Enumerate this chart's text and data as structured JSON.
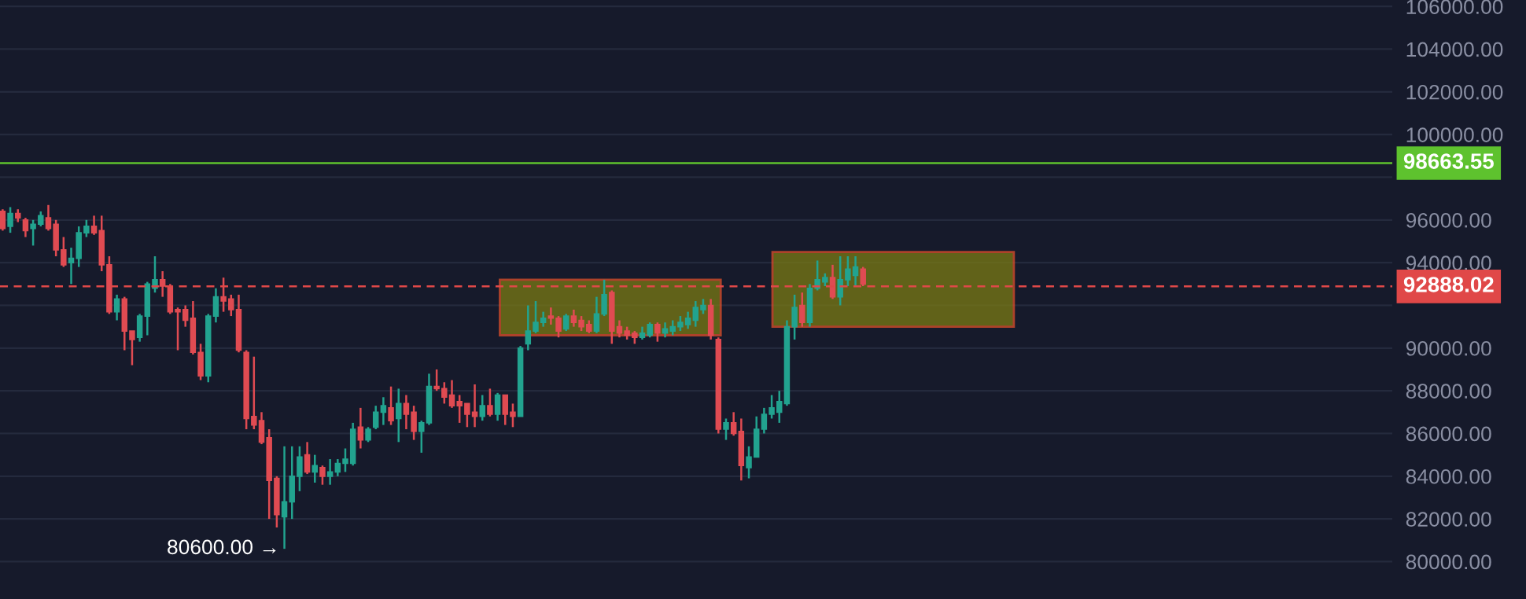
{
  "chart_data": {
    "type": "candlestick",
    "categories": [
      null,
      null,
      null,
      null,
      null,
      null,
      null,
      null,
      null,
      null,
      null,
      null,
      null,
      null,
      null,
      null,
      null,
      null,
      null,
      null,
      null,
      null,
      null,
      null,
      null,
      null,
      null,
      null,
      null,
      null,
      null,
      null,
      null,
      null,
      null,
      null,
      null,
      null,
      null,
      null,
      null,
      null,
      null,
      null,
      null,
      null,
      null,
      null,
      null,
      null,
      null,
      null,
      null,
      null,
      null,
      null,
      null,
      null,
      null,
      null,
      null,
      null,
      null,
      null,
      null,
      null,
      null,
      null,
      null,
      null,
      null,
      null,
      null,
      null,
      null,
      null,
      null,
      null,
      null,
      null,
      null,
      null,
      null,
      null,
      null,
      null,
      null,
      null,
      null,
      null,
      null,
      null,
      null,
      null,
      null,
      null,
      null,
      null,
      null,
      null,
      null,
      null,
      null,
      null,
      null,
      null,
      null,
      null,
      null,
      null,
      null,
      null,
      null,
      null,
      null,
      null,
      null,
      null,
      null,
      null,
      null,
      null,
      null,
      null,
      null,
      null,
      null,
      null,
      null,
      null,
      null,
      null,
      null,
      null,
      null,
      null,
      null,
      null,
      null,
      null,
      null,
      null,
      null,
      null,
      null,
      null,
      null,
      null,
      null,
      null,
      null,
      null,
      null,
      null,
      null,
      null,
      null,
      null,
      null,
      null,
      null,
      null,
      null,
      null,
      null,
      null,
      null,
      null,
      null,
      null,
      null,
      null,
      null,
      null,
      null,
      null,
      null,
      null,
      null,
      null,
      null,
      null,
      null
    ],
    "ohlc": [
      [
        96400,
        96500,
        95500,
        95600
      ],
      [
        95700,
        96600,
        95400,
        96300
      ],
      [
        96300,
        96500,
        95900,
        96100
      ],
      [
        96000,
        96100,
        95200,
        95500
      ],
      [
        95600,
        96000,
        94800,
        95800
      ],
      [
        95800,
        96400,
        95700,
        96200
      ],
      [
        96100,
        96700,
        95500,
        95600
      ],
      [
        95800,
        96000,
        94300,
        94600
      ],
      [
        94600,
        95200,
        93800,
        93900
      ],
      [
        94000,
        94700,
        93000,
        94200
      ],
      [
        94200,
        95700,
        93800,
        95400
      ],
      [
        95400,
        96000,
        95200,
        95700
      ],
      [
        95700,
        96200,
        95300,
        95400
      ],
      [
        95500,
        96200,
        93600,
        93900
      ],
      [
        93900,
        94300,
        91600,
        91700
      ],
      [
        91700,
        92500,
        91300,
        92300
      ],
      [
        92300,
        92400,
        89900,
        90800
      ],
      [
        90800,
        90800,
        89200,
        90400
      ],
      [
        90500,
        91600,
        90300,
        91500
      ],
      [
        91500,
        93100,
        90600,
        93000
      ],
      [
        92800,
        94300,
        92600,
        93200
      ],
      [
        93200,
        93600,
        92400,
        92900
      ],
      [
        92900,
        93000,
        91600,
        91700
      ],
      [
        91800,
        91900,
        89900,
        91700
      ],
      [
        91800,
        92000,
        91000,
        91300
      ],
      [
        91400,
        92200,
        89700,
        89800
      ],
      [
        89800,
        90200,
        88500,
        88700
      ],
      [
        88700,
        91600,
        88400,
        91500
      ],
      [
        91500,
        92800,
        91200,
        92400
      ],
      [
        92400,
        93300,
        91700,
        92200
      ],
      [
        92300,
        92500,
        91500,
        91800
      ],
      [
        91800,
        92500,
        89800,
        89900
      ],
      [
        89800,
        89900,
        86200,
        86700
      ],
      [
        86800,
        89600,
        86200,
        86400
      ],
      [
        86600,
        87000,
        85500,
        85600
      ],
      [
        85800,
        86200,
        82000,
        83800
      ],
      [
        83900,
        84000,
        81600,
        82200
      ],
      [
        82100,
        85400,
        80600,
        82800
      ],
      [
        82800,
        85400,
        82000,
        84000
      ],
      [
        84000,
        85400,
        83300,
        84900
      ],
      [
        85000,
        85600,
        84100,
        84200
      ],
      [
        84200,
        85000,
        83700,
        84500
      ],
      [
        84400,
        84500,
        83600,
        84000
      ],
      [
        84000,
        84800,
        83600,
        84200
      ],
      [
        84200,
        84800,
        84000,
        84600
      ],
      [
        84600,
        85300,
        84200,
        84800
      ],
      [
        84600,
        86500,
        84500,
        86200
      ],
      [
        86300,
        87200,
        85300,
        85700
      ],
      [
        85700,
        86300,
        85600,
        86200
      ],
      [
        86300,
        87300,
        86200,
        87000
      ],
      [
        87000,
        87700,
        86400,
        87300
      ],
      [
        87200,
        88200,
        86400,
        86600
      ],
      [
        86700,
        88100,
        85600,
        87400
      ],
      [
        87400,
        87800,
        86200,
        86900
      ],
      [
        87000,
        87300,
        85700,
        86100
      ],
      [
        86100,
        86600,
        85100,
        86500
      ],
      [
        86500,
        88800,
        86400,
        88200
      ],
      [
        88200,
        89000,
        88000,
        88100
      ],
      [
        88100,
        88400,
        87400,
        87700
      ],
      [
        87800,
        88500,
        87200,
        87300
      ],
      [
        87500,
        87800,
        86500,
        87300
      ],
      [
        87400,
        87400,
        86300,
        86900
      ],
      [
        87000,
        88300,
        86300,
        86800
      ],
      [
        86800,
        87800,
        86600,
        87300
      ],
      [
        87300,
        88100,
        86800,
        86900
      ],
      [
        86900,
        87900,
        86600,
        87800
      ],
      [
        87800,
        87800,
        86400,
        86900
      ],
      [
        87000,
        87400,
        86300,
        86800
      ],
      [
        86800,
        90100,
        86800,
        90000
      ],
      [
        90200,
        92000,
        89900,
        90800
      ],
      [
        90800,
        92200,
        90700,
        91200
      ],
      [
        91200,
        91700,
        91000,
        91400
      ],
      [
        91500,
        91900,
        91100,
        91400
      ],
      [
        91400,
        91500,
        90500,
        90800
      ],
      [
        90900,
        91600,
        90800,
        91500
      ],
      [
        91500,
        91800,
        91000,
        91200
      ],
      [
        91300,
        91500,
        90800,
        91000
      ],
      [
        91100,
        91300,
        90700,
        90800
      ],
      [
        90800,
        92400,
        90700,
        91600
      ],
      [
        91600,
        93200,
        91500,
        92500
      ],
      [
        92600,
        92700,
        90200,
        90800
      ],
      [
        91000,
        91300,
        90500,
        90700
      ],
      [
        90800,
        91000,
        90400,
        90600
      ],
      [
        90700,
        90800,
        90200,
        90500
      ],
      [
        90500,
        91000,
        90400,
        90700
      ],
      [
        90600,
        91200,
        90500,
        91100
      ],
      [
        91100,
        91200,
        90300,
        90700
      ],
      [
        90700,
        91200,
        90500,
        90900
      ],
      [
        90800,
        91300,
        90600,
        91000
      ],
      [
        91000,
        91500,
        90800,
        91200
      ],
      [
        91100,
        91700,
        90900,
        91400
      ],
      [
        91300,
        92200,
        91000,
        91900
      ],
      [
        91800,
        92300,
        91600,
        92000
      ],
      [
        92000,
        92300,
        90400,
        90600
      ],
      [
        90400,
        90500,
        86000,
        86200
      ],
      [
        86200,
        86700,
        85700,
        86500
      ],
      [
        86500,
        87000,
        85900,
        86000
      ],
      [
        86100,
        86700,
        83800,
        84500
      ],
      [
        84400,
        85400,
        83900,
        84900
      ],
      [
        84900,
        86800,
        84900,
        86200
      ],
      [
        86200,
        87200,
        86000,
        86900
      ],
      [
        86900,
        87800,
        86700,
        87200
      ],
      [
        87000,
        88000,
        86500,
        87500
      ],
      [
        87400,
        91300,
        87300,
        91000
      ],
      [
        91000,
        92500,
        90400,
        91900
      ],
      [
        92000,
        92600,
        91000,
        91200
      ],
      [
        91200,
        93000,
        91000,
        92800
      ],
      [
        92800,
        94100,
        92700,
        93200
      ],
      [
        93100,
        93500,
        92900,
        93300
      ],
      [
        93300,
        93900,
        92300,
        92400
      ],
      [
        92400,
        94300,
        92000,
        93200
      ],
      [
        93200,
        94300,
        92900,
        93700
      ],
      [
        93400,
        94300,
        92900,
        93800
      ],
      [
        93700,
        93800,
        92900,
        93000
      ],
      null,
      null,
      null,
      null,
      null,
      null,
      null,
      null,
      null,
      null,
      null,
      null,
      null,
      null,
      null,
      null,
      null,
      null,
      null,
      null,
      null,
      null,
      null,
      null,
      null,
      null,
      null,
      null,
      null,
      null,
      null,
      null,
      null,
      null,
      null,
      null,
      null,
      null,
      null,
      null,
      null,
      null,
      null,
      null,
      null,
      null,
      null,
      null,
      null,
      null,
      null,
      null,
      null,
      null,
      null,
      null,
      null,
      null,
      null,
      null,
      null,
      null,
      null,
      null,
      null,
      null,
      null,
      null,
      null
    ],
    "colors": [
      "#e04b52",
      "#22a38f",
      "#e04b52",
      "#e04b52",
      "#22a38f",
      "#22a38f",
      "#e04b52",
      "#e04b52",
      "#e04b52",
      "#22a38f",
      "#22a38f",
      "#22a38f",
      "#e04b52",
      "#e04b52",
      "#e04b52",
      "#22a38f",
      "#e04b52",
      "#e04b52",
      "#22a38f",
      "#22a38f",
      "#22a38f",
      "#e04b52",
      "#e04b52",
      "#e04b52",
      "#e04b52",
      "#e04b52",
      "#e04b52",
      "#22a38f",
      "#22a38f",
      "#e04b52",
      "#e04b52",
      "#e04b52",
      "#e04b52",
      "#e04b52",
      "#e04b52",
      "#e04b52",
      "#e04b52",
      "#22a38f",
      "#22a38f",
      "#22a38f",
      "#e04b52",
      "#22a38f",
      "#e04b52",
      "#22a38f",
      "#22a38f",
      "#22a38f",
      "#22a38f",
      "#e04b52",
      "#22a38f",
      "#22a38f",
      "#22a38f",
      "#e04b52",
      "#22a38f",
      "#e04b52",
      "#e04b52",
      "#22a38f",
      "#22a38f",
      "#e04b52",
      "#e04b52",
      "#e04b52",
      "#e04b52",
      "#e04b52",
      "#e04b52",
      "#22a38f",
      "#e04b52",
      "#22a38f",
      "#e04b52",
      "#e04b52",
      "#22a38f",
      "#22a38f",
      "#22a38f",
      "#22a38f",
      "#e04b52",
      "#e04b52",
      "#22a38f",
      "#e04b52",
      "#e04b52",
      "#e04b52",
      "#22a38f",
      "#22a38f",
      "#e04b52",
      "#e04b52",
      "#e04b52",
      "#e04b52",
      "#22a38f",
      "#22a38f",
      "#e04b52",
      "#22a38f",
      "#22a38f",
      "#22a38f",
      "#22a38f",
      "#22a38f",
      "#22a38f",
      "#e04b52",
      "#e04b52",
      "#22a38f",
      "#e04b52",
      "#e04b52",
      "#22a38f",
      "#22a38f",
      "#22a38f",
      "#22a38f",
      "#22a38f",
      "#22a38f",
      "#22a38f",
      "#e04b52",
      "#22a38f",
      "#22a38f",
      "#22a38f",
      "#e04b52",
      "#22a38f",
      "#22a38f",
      "#22a38f",
      "#e04b52",
      null,
      null,
      null,
      null,
      null,
      null,
      null,
      null,
      null,
      null,
      null,
      null,
      null,
      null,
      null,
      null,
      null,
      null,
      null,
      null,
      null,
      null,
      null,
      null,
      null,
      null,
      null,
      null,
      null,
      null,
      null,
      null,
      null,
      null,
      null,
      null,
      null,
      null,
      null,
      null,
      null,
      null,
      null,
      null,
      null,
      null,
      null,
      null,
      null,
      null,
      null,
      null,
      null,
      null,
      null,
      null,
      null,
      null,
      null,
      null,
      null,
      null,
      null,
      null,
      null,
      null,
      null,
      null,
      null
    ],
    "ylim": [
      78250,
      106300
    ],
    "yticks": [
      {
        "value": 80000,
        "label": "80000.00"
      },
      {
        "value": 82000,
        "label": "82000.00"
      },
      {
        "value": 84000,
        "label": "84000.00"
      },
      {
        "value": 86000,
        "label": "86000.00"
      },
      {
        "value": 88000,
        "label": "88000.00"
      },
      {
        "value": 90000,
        "label": "90000.00"
      },
      {
        "value": 92000,
        "label": null
      },
      {
        "value": 94000,
        "label": "94000.00"
      },
      {
        "value": 96000,
        "label": "96000.00"
      },
      {
        "value": 98000,
        "label": null
      },
      {
        "value": 100000,
        "label": "100000.00"
      },
      {
        "value": 102000,
        "label": "102000.00"
      },
      {
        "value": 104000,
        "label": "104000.00"
      },
      {
        "value": 106000,
        "label": "106000.00"
      }
    ],
    "tick_labels": "y",
    "grid": "y",
    "ref_lines": [
      {
        "axis": "y",
        "value": 98663.55,
        "label": "98663.55",
        "color": "#5ec22e",
        "line_style": "solid"
      },
      {
        "axis": "y",
        "value": 92888.02,
        "label": "92888.02",
        "color": "#e04848",
        "line_style": "dashed"
      }
    ],
    "annotations": [
      "80600.00 →"
    ]
  }
}
